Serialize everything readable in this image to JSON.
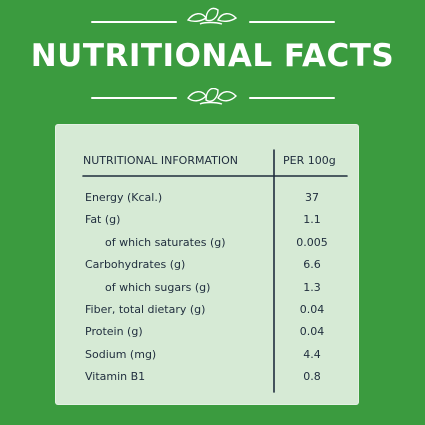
{
  "title": "NUTRITIONAL FACTS",
  "table": {
    "header": {
      "col1": "NUTRITIONAL INFORMATION",
      "col2": "PER 100g"
    },
    "rows": [
      {
        "name": "Energy (Kcal.)",
        "value": "37",
        "indent": false
      },
      {
        "name": "Fat (g)",
        "value": "1.1",
        "indent": false
      },
      {
        "name": "of which saturates (g)",
        "value": "0.005",
        "indent": true
      },
      {
        "name": "Carbohydrates (g)",
        "value": "6.6",
        "indent": false
      },
      {
        "name": "of which sugars (g)",
        "value": "1.3",
        "indent": true
      },
      {
        "name": "Fiber, total dietary (g)",
        "value": "0.04",
        "indent": false
      },
      {
        "name": "Protein (g)",
        "value": "0.04",
        "indent": false
      },
      {
        "name": "Sodium (mg)",
        "value": "4.4",
        "indent": false
      },
      {
        "name": "Vitamin B1",
        "value": "0.8",
        "indent": false
      }
    ]
  },
  "colors": {
    "background": "#3b9b3f",
    "panel": "#d6ead5",
    "text": "#1f2d3d",
    "title": "#ffffff"
  },
  "icons": [
    "leaf-ornament-icon"
  ]
}
